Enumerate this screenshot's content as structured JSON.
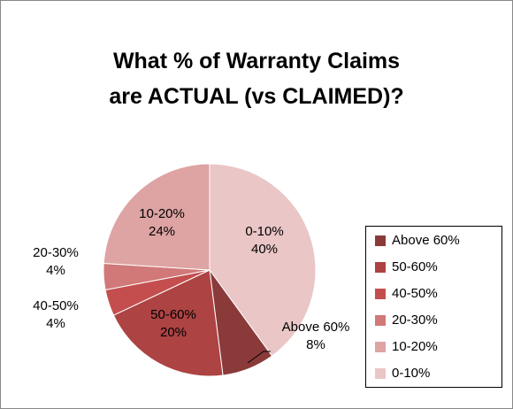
{
  "chart_data": {
    "type": "pie",
    "title": "What % of Warranty Claims are ACTUAL (vs CLAIMED)?",
    "categories": [
      "Above 60%",
      "50-60%",
      "40-50%",
      "20-30%",
      "10-20%",
      "0-10%"
    ],
    "values": [
      8,
      20,
      4,
      4,
      24,
      40
    ],
    "value_labels": [
      "8%",
      "20%",
      "4%",
      "4%",
      "24%",
      "40%"
    ],
    "colors": [
      "#8b3a3a",
      "#ad4343",
      "#c44e4e",
      "#d17878",
      "#dea3a3",
      "#eac6c7"
    ],
    "legend": "right"
  }
}
